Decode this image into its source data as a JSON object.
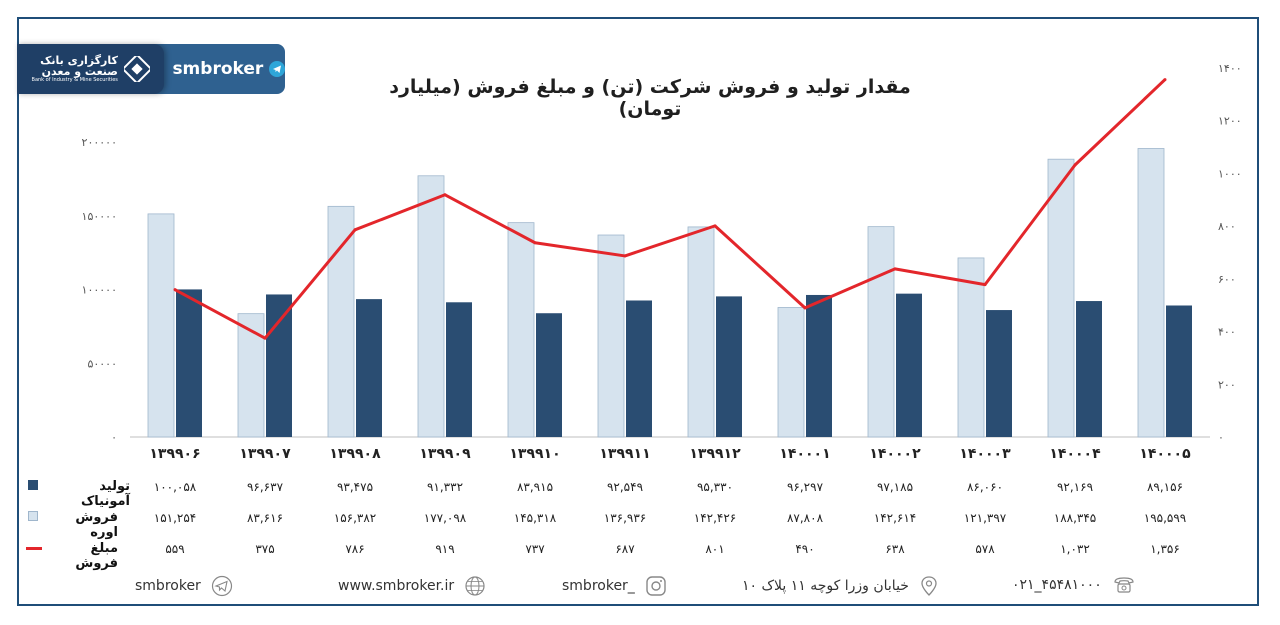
{
  "brand": {
    "logo_line1": "کارگزاری بانک",
    "logo_line2": "صنعت و معدن",
    "logo_line3": "Bank of Industry & Mine Securities",
    "name": "smbroker"
  },
  "chart_data": {
    "type": "bar",
    "title": "مقدار تولید و فروش شرکت (تن) و مبلغ فروش (میلیارد تومان)",
    "categories": [
      "۱۳۹۹۰۶",
      "۱۳۹۹۰۷",
      "۱۳۹۹۰۸",
      "۱۳۹۹۰۹",
      "۱۳۹۹۱۰",
      "۱۳۹۹۱۱",
      "۱۳۹۹۱۲",
      "۱۴۰۰۰۱",
      "۱۴۰۰۰۲",
      "۱۴۰۰۰۳",
      "۱۴۰۰۰۴",
      "۱۴۰۰۰۵"
    ],
    "left_axis": {
      "ylim": [
        0,
        200000
      ],
      "ticks": [
        0,
        50000,
        100000,
        150000,
        200000
      ],
      "tick_labels": [
        "۰",
        "۵۰۰۰۰",
        "۱۰۰۰۰۰",
        "۱۵۰۰۰۰",
        "۲۰۰۰۰۰"
      ]
    },
    "right_axis": {
      "ylim": [
        0,
        1400
      ],
      "ticks": [
        0,
        200,
        400,
        600,
        800,
        1000,
        1200,
        1400
      ],
      "tick_labels": [
        "۰",
        "۲۰۰",
        "۴۰۰",
        "۶۰۰",
        "۸۰۰",
        "۱۰۰۰",
        "۱۲۰۰",
        "۱۴۰۰"
      ]
    },
    "series": [
      {
        "name": "تولید آمونیاک",
        "type": "bar",
        "axis": "left",
        "color": "#2a4d72",
        "values": [
          100058,
          96637,
          93475,
          91332,
          83915,
          92549,
          95330,
          96297,
          97185,
          86060,
          92169,
          89156
        ],
        "labels": [
          "۱۰۰,۰۵۸",
          "۹۶,۶۳۷",
          "۹۳,۴۷۵",
          "۹۱,۳۳۲",
          "۸۳,۹۱۵",
          "۹۲,۵۴۹",
          "۹۵,۳۳۰",
          "۹۶,۲۹۷",
          "۹۷,۱۸۵",
          "۸۶,۰۶۰",
          "۹۲,۱۶۹",
          "۸۹,۱۵۶"
        ]
      },
      {
        "name": "فروش اوره",
        "type": "bar",
        "axis": "left",
        "color": "#d6e3ee",
        "values": [
          151254,
          83616,
          156382,
          177098,
          145318,
          136936,
          142426,
          87808,
          142614,
          121397,
          188345,
          195599
        ],
        "labels": [
          "۱۵۱,۲۵۴",
          "۸۳,۶۱۶",
          "۱۵۶,۳۸۲",
          "۱۷۷,۰۹۸",
          "۱۴۵,۳۱۸",
          "۱۳۶,۹۳۶",
          "۱۴۲,۴۲۶",
          "۸۷,۸۰۸",
          "۱۴۲,۶۱۴",
          "۱۲۱,۳۹۷",
          "۱۸۸,۳۴۵",
          "۱۹۵,۵۹۹"
        ]
      },
      {
        "name": "مبلغ فروش",
        "type": "line",
        "axis": "right",
        "color": "#e3262b",
        "values": [
          559,
          375,
          786,
          919,
          737,
          687,
          801,
          490,
          638,
          578,
          1032,
          1356
        ],
        "labels": [
          "۵۵۹",
          "۳۷۵",
          "۷۸۶",
          "۹۱۹",
          "۷۳۷",
          "۶۸۷",
          "۸۰۱",
          "۴۹۰",
          "۶۳۸",
          "۵۷۸",
          "۱,۰۳۲",
          "۱,۳۵۶"
        ]
      }
    ]
  },
  "footer": {
    "telegram": "smbroker",
    "website": "www.smbroker.ir",
    "instagram": "smbroker_",
    "address": "خیابان وزرا کوچه ۱۱ پلاک ۱۰",
    "phone": "۰۲۱_۴۵۴۸۱۰۰۰"
  }
}
